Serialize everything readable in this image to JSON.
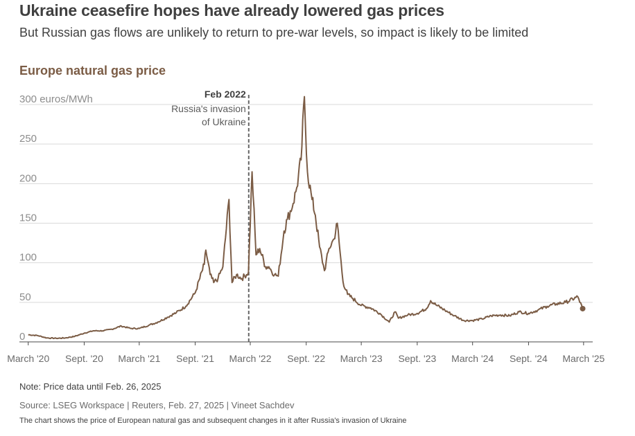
{
  "headline": "Ukraine ceasefire hopes have already lowered gas prices",
  "subhead": "But Russian gas flows are unlikely to return to pre-war levels, so impact is likely to be limited",
  "chart_title": "Europe natural gas price",
  "note": "Note: Price data until Feb. 26, 2025",
  "source": "LSEG Workspace | Reuters, Feb. 27, 2025 | Vineet Sachdev",
  "source_prefix": "Source: ",
  "alt_text": "The chart shows the price of European natural gas and subsequent changes in it after Russia's invasion of Ukraine",
  "colors": {
    "line": "#7b5c45",
    "grid": "#d9d9d9",
    "axis_text": "#8c8c8c",
    "annotation": "#404040"
  },
  "chart_data": {
    "type": "line",
    "title": "Europe natural gas price",
    "ylabel": "euros/MWh",
    "ylim": [
      0,
      300
    ],
    "y_ticks": [
      0,
      50,
      100,
      150,
      200,
      250,
      300
    ],
    "y_tick_labels": [
      "0",
      "50",
      "100",
      "150",
      "200",
      "250",
      "300 euros/MWh"
    ],
    "xlim": [
      "2020-02-01",
      "2025-03-31"
    ],
    "x_ticks": [
      "2020-03-01",
      "2020-09-01",
      "2021-03-01",
      "2021-09-01",
      "2022-03-01",
      "2022-09-01",
      "2023-03-01",
      "2023-09-01",
      "2024-03-01",
      "2024-09-01",
      "2025-03-01"
    ],
    "x_tick_labels": [
      "March '20",
      "Sept. '20",
      "March '21",
      "Sept. '21",
      "March '22",
      "Sept. '22",
      "March '23",
      "Sept. '23",
      "March '24",
      "Sept. '24",
      "March '25"
    ],
    "grid": true,
    "series": [
      {
        "points": [
          [
            "2020-03-01",
            9
          ],
          [
            "2020-04-01",
            8
          ],
          [
            "2020-05-01",
            5
          ],
          [
            "2020-06-01",
            4.5
          ],
          [
            "2020-07-01",
            5
          ],
          [
            "2020-08-01",
            7
          ],
          [
            "2020-09-01",
            11
          ],
          [
            "2020-10-01",
            14
          ],
          [
            "2020-11-01",
            14
          ],
          [
            "2020-12-01",
            16
          ],
          [
            "2021-01-01",
            20
          ],
          [
            "2021-02-01",
            17
          ],
          [
            "2021-03-01",
            17
          ],
          [
            "2021-04-01",
            21
          ],
          [
            "2021-05-01",
            25
          ],
          [
            "2021-06-01",
            31
          ],
          [
            "2021-07-01",
            37
          ],
          [
            "2021-08-01",
            45
          ],
          [
            "2021-09-01",
            62
          ],
          [
            "2021-10-01",
            98
          ],
          [
            "2021-10-06",
            116
          ],
          [
            "2021-10-20",
            85
          ],
          [
            "2021-11-01",
            75
          ],
          [
            "2021-11-15",
            80
          ],
          [
            "2021-12-01",
            95
          ],
          [
            "2021-12-21",
            180
          ],
          [
            "2021-12-31",
            75
          ],
          [
            "2022-01-15",
            85
          ],
          [
            "2022-02-01",
            80
          ],
          [
            "2022-02-23",
            88
          ],
          [
            "2022-03-07",
            215
          ],
          [
            "2022-03-20",
            110
          ],
          [
            "2022-04-01",
            118
          ],
          [
            "2022-04-20",
            95
          ],
          [
            "2022-05-01",
            95
          ],
          [
            "2022-05-20",
            85
          ],
          [
            "2022-06-01",
            83
          ],
          [
            "2022-06-20",
            140
          ],
          [
            "2022-07-01",
            155
          ],
          [
            "2022-07-20",
            175
          ],
          [
            "2022-08-01",
            195
          ],
          [
            "2022-08-15",
            230
          ],
          [
            "2022-08-26",
            310
          ],
          [
            "2022-09-05",
            215
          ],
          [
            "2022-09-20",
            180
          ],
          [
            "2022-10-01",
            160
          ],
          [
            "2022-10-15",
            120
          ],
          [
            "2022-10-31",
            90
          ],
          [
            "2022-11-15",
            118
          ],
          [
            "2022-12-01",
            130
          ],
          [
            "2022-12-12",
            150
          ],
          [
            "2022-12-31",
            76
          ],
          [
            "2023-01-15",
            60
          ],
          [
            "2023-02-01",
            55
          ],
          [
            "2023-03-01",
            46
          ],
          [
            "2023-04-01",
            43
          ],
          [
            "2023-05-01",
            36
          ],
          [
            "2023-06-01",
            25
          ],
          [
            "2023-06-20",
            38
          ],
          [
            "2023-07-01",
            30
          ],
          [
            "2023-08-01",
            34
          ],
          [
            "2023-09-01",
            36
          ],
          [
            "2023-10-01",
            42
          ],
          [
            "2023-10-15",
            52
          ],
          [
            "2023-11-01",
            47
          ],
          [
            "2023-12-01",
            40
          ],
          [
            "2024-01-01",
            33
          ],
          [
            "2024-02-01",
            27
          ],
          [
            "2024-03-01",
            27
          ],
          [
            "2024-04-01",
            29
          ],
          [
            "2024-05-01",
            33
          ],
          [
            "2024-06-01",
            34
          ],
          [
            "2024-07-01",
            33
          ],
          [
            "2024-08-01",
            38
          ],
          [
            "2024-09-01",
            36
          ],
          [
            "2024-10-01",
            40
          ],
          [
            "2024-11-01",
            45
          ],
          [
            "2024-12-01",
            48
          ],
          [
            "2025-01-01",
            50
          ],
          [
            "2025-02-10",
            57
          ],
          [
            "2025-02-26",
            42
          ]
        ]
      }
    ],
    "annotations": [
      {
        "date": "2022-02-24",
        "label_bold": "Feb 2022",
        "label_lines": [
          "Russia's invasion",
          "of Ukraine"
        ]
      }
    ]
  }
}
